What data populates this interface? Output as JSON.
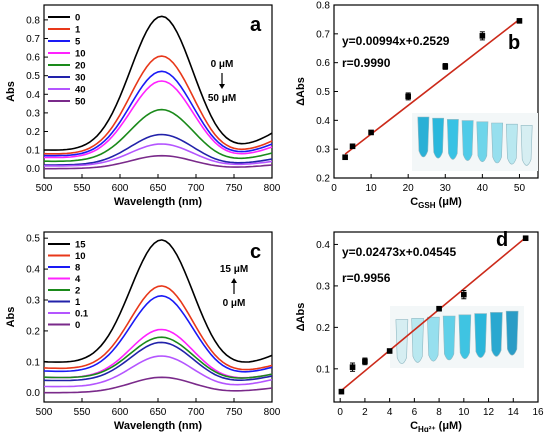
{
  "chart_data": [
    {
      "id": "a",
      "type": "line",
      "panel_label": "a",
      "xlabel": "Wavelength (nm)",
      "ylabel": "Abs",
      "xlim": [
        500,
        800
      ],
      "ylim": [
        -0.05,
        0.88
      ],
      "xticks": [
        500,
        550,
        600,
        650,
        700,
        750,
        800
      ],
      "yticks": [
        0.0,
        0.1,
        0.2,
        0.3,
        0.4,
        0.5,
        0.6,
        0.7,
        0.8
      ],
      "x": [
        500,
        510,
        520,
        530,
        540,
        550,
        560,
        570,
        580,
        590,
        600,
        610,
        620,
        630,
        640,
        650,
        655,
        660,
        670,
        680,
        690,
        700,
        710,
        720,
        730,
        740,
        750,
        760,
        770,
        780,
        790,
        800
      ],
      "legend_position": "top-left",
      "annotation": {
        "top": "0 μM",
        "bottom": "50 μM",
        "arrow": "down"
      },
      "series": [
        {
          "name": "0",
          "color": "#000000",
          "peak": 0.8,
          "baseline": 0.1,
          "tail": 0.33,
          "tail_dip": 0.2
        },
        {
          "name": "1",
          "color": "#e8381a",
          "peak": 0.59,
          "baseline": 0.08,
          "tail": 0.25,
          "tail_dip": 0.15
        },
        {
          "name": "5",
          "color": "#1a1af5",
          "peak": 0.51,
          "baseline": 0.07,
          "tail": 0.22,
          "tail_dip": 0.13
        },
        {
          "name": "10",
          "color": "#ff22ff",
          "peak": 0.46,
          "baseline": 0.06,
          "tail": 0.19,
          "tail_dip": 0.11
        },
        {
          "name": "20",
          "color": "#1a8a1a",
          "peak": 0.31,
          "baseline": 0.04,
          "tail": 0.13,
          "tail_dip": 0.07
        },
        {
          "name": "30",
          "color": "#2222aa",
          "peak": 0.18,
          "baseline": 0.02,
          "tail": 0.08,
          "tail_dip": 0.04
        },
        {
          "name": "40",
          "color": "#b455ff",
          "peak": 0.13,
          "baseline": 0.015,
          "tail": 0.06,
          "tail_dip": 0.03
        },
        {
          "name": "50",
          "color": "#7a2a8a",
          "peak": 0.07,
          "baseline": 0.0,
          "tail": 0.03,
          "tail_dip": 0.01
        }
      ]
    },
    {
      "id": "b",
      "type": "scatter",
      "panel_label": "b",
      "xlabel": "C",
      "xlabel_sub": "GSH",
      "xlabel_unit": " (μM)",
      "ylabel": "ΔAbs",
      "xlim": [
        0,
        55
      ],
      "ylim": [
        0.2,
        0.8
      ],
      "xticks": [
        0,
        10,
        20,
        30,
        40,
        50
      ],
      "yticks": [
        0.2,
        0.3,
        0.4,
        0.5,
        0.6,
        0.7,
        0.8
      ],
      "points": [
        {
          "x": 3,
          "y": 0.272,
          "err": 0.006
        },
        {
          "x": 5,
          "y": 0.31,
          "err": 0.006
        },
        {
          "x": 10,
          "y": 0.358,
          "err": 0.006
        },
        {
          "x": 20,
          "y": 0.483,
          "err": 0.012
        },
        {
          "x": 30,
          "y": 0.587,
          "err": 0.01
        },
        {
          "x": 40,
          "y": 0.693,
          "err": 0.014
        },
        {
          "x": 50,
          "y": 0.745,
          "err": 0.004
        }
      ],
      "fit": {
        "slope": 0.00994,
        "intercept": 0.2529,
        "x_range": [
          3,
          50
        ]
      },
      "equation": "y=0.00994x+0.2529",
      "r_text": "r=0.9990",
      "fit_color": "#cc2a1a",
      "tube_colors": [
        "#2ab0d6",
        "#2ab8dc",
        "#38c2e4",
        "#4fcbe8",
        "#6ed5ea",
        "#96dfee",
        "#b9e8f0",
        "#d6eef2"
      ],
      "tube_order": "descending"
    },
    {
      "id": "c",
      "type": "line",
      "panel_label": "c",
      "xlabel": "Wavelength (nm)",
      "ylabel": "Abs",
      "xlim": [
        500,
        800
      ],
      "ylim": [
        -0.03,
        0.52
      ],
      "xticks": [
        500,
        550,
        600,
        650,
        700,
        750,
        800
      ],
      "yticks": [
        0.0,
        0.1,
        0.2,
        0.3,
        0.4,
        0.5
      ],
      "legend_position": "top-left",
      "annotation": {
        "top": "15 μM",
        "bottom": "0 μM",
        "arrow": "up"
      },
      "series": [
        {
          "name": "15",
          "color": "#000000",
          "peak": 0.475,
          "baseline": 0.1,
          "tail": 0.18,
          "tail_dip": 0.12
        },
        {
          "name": "10",
          "color": "#e8381a",
          "peak": 0.33,
          "baseline": 0.08,
          "tail": 0.13,
          "tail_dip": 0.09
        },
        {
          "name": "8",
          "color": "#1a1af5",
          "peak": 0.3,
          "baseline": 0.07,
          "tail": 0.12,
          "tail_dip": 0.08
        },
        {
          "name": "4",
          "color": "#ff22ff",
          "peak": 0.195,
          "baseline": 0.05,
          "tail": 0.09,
          "tail_dip": 0.06
        },
        {
          "name": "2",
          "color": "#1a8a1a",
          "peak": 0.17,
          "baseline": 0.05,
          "tail": 0.08,
          "tail_dip": 0.05
        },
        {
          "name": "1",
          "color": "#2222aa",
          "peak": 0.155,
          "baseline": 0.04,
          "tail": 0.07,
          "tail_dip": 0.04
        },
        {
          "name": "0.1",
          "color": "#b455ff",
          "peak": 0.115,
          "baseline": 0.02,
          "tail": 0.05,
          "tail_dip": 0.02
        },
        {
          "name": "0",
          "color": "#7a2a8a",
          "peak": 0.05,
          "baseline": 0.0,
          "tail": 0.02,
          "tail_dip": 0.005
        }
      ]
    },
    {
      "id": "d",
      "type": "scatter",
      "panel_label": "d",
      "xlabel": "C",
      "xlabel_sub": "Hg²⁺",
      "xlabel_unit": " (μM)",
      "ylabel": "ΔAbs",
      "xlim": [
        -0.5,
        16
      ],
      "ylim": [
        0.02,
        0.43
      ],
      "xticks": [
        0,
        2,
        4,
        6,
        8,
        10,
        12,
        14,
        16
      ],
      "yticks": [
        0.1,
        0.2,
        0.3,
        0.4
      ],
      "points": [
        {
          "x": 0.1,
          "y": 0.045,
          "err": 0.004
        },
        {
          "x": 1,
          "y": 0.104,
          "err": 0.01
        },
        {
          "x": 2,
          "y": 0.118,
          "err": 0.008
        },
        {
          "x": 4,
          "y": 0.143,
          "err": 0.004
        },
        {
          "x": 8,
          "y": 0.245,
          "err": 0.004
        },
        {
          "x": 10,
          "y": 0.279,
          "err": 0.01
        },
        {
          "x": 15,
          "y": 0.415,
          "err": 0.004
        }
      ],
      "fit": {
        "slope": 0.02473,
        "intercept": 0.04545,
        "x_range": [
          0,
          15
        ]
      },
      "equation": "y=0.02473x+0.04545",
      "r_text": "r=0.9956",
      "fit_color": "#cc2a1a",
      "tube_colors": [
        "#d6eef2",
        "#b9e8f0",
        "#96dfee",
        "#5fd0e8",
        "#3fc4e2",
        "#2ab6da",
        "#2aa8d0",
        "#2a9cc6"
      ],
      "tube_order": "ascending"
    }
  ]
}
